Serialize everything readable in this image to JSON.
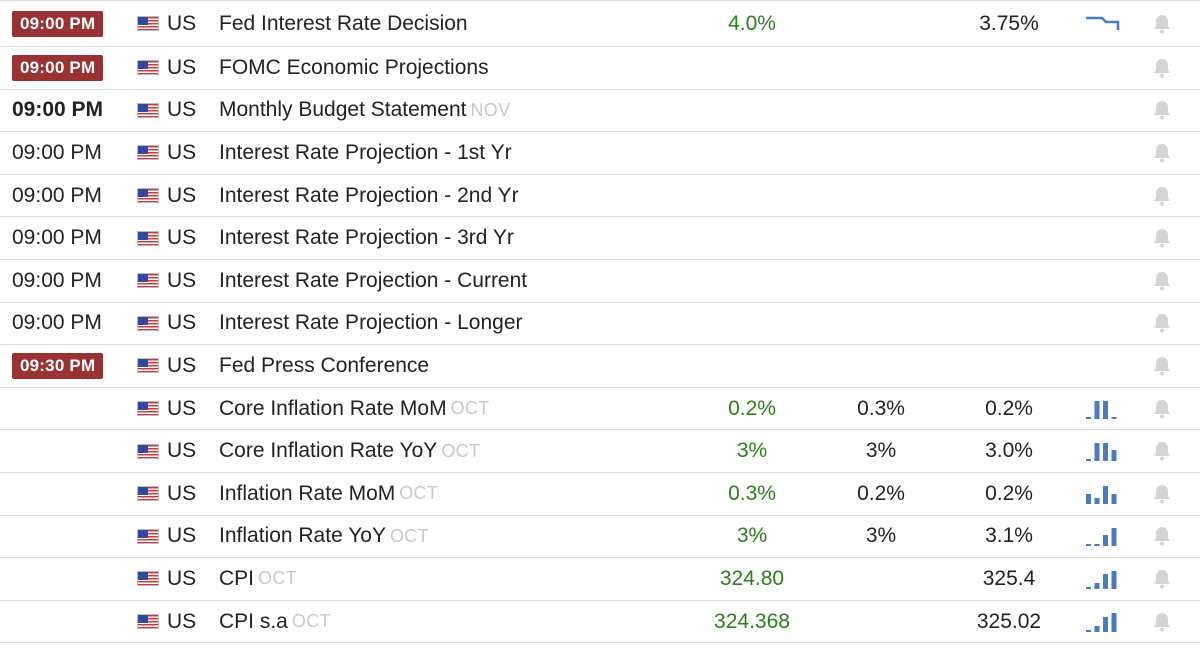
{
  "colors": {
    "badge_bg": "#993333",
    "actual_green": "#2e7d1f",
    "chart_blue": "#4a7bc0",
    "muted": "#c9c9c9"
  },
  "rows": [
    {
      "time": "09:00 PM",
      "time_style": "badge",
      "country": "US",
      "event": "Fed Interest Rate Decision",
      "ref": "",
      "actual": "4.0%",
      "consensus": "",
      "forecast": "3.75%",
      "chart": "step-line"
    },
    {
      "time": "09:00 PM",
      "time_style": "badge",
      "country": "US",
      "event": "FOMC Economic Projections",
      "ref": "",
      "actual": "",
      "consensus": "",
      "forecast": "",
      "chart": ""
    },
    {
      "time": "09:00 PM",
      "time_style": "bold",
      "country": "US",
      "event": "Monthly Budget Statement",
      "ref": "NOV",
      "actual": "",
      "consensus": "",
      "forecast": "",
      "chart": ""
    },
    {
      "time": "09:00 PM",
      "time_style": "plain",
      "country": "US",
      "event": "Interest Rate Projection - 1st Yr",
      "ref": "",
      "actual": "",
      "consensus": "",
      "forecast": "",
      "chart": ""
    },
    {
      "time": "09:00 PM",
      "time_style": "plain",
      "country": "US",
      "event": "Interest Rate Projection - 2nd Yr",
      "ref": "",
      "actual": "",
      "consensus": "",
      "forecast": "",
      "chart": ""
    },
    {
      "time": "09:00 PM",
      "time_style": "plain",
      "country": "US",
      "event": "Interest Rate Projection - 3rd Yr",
      "ref": "",
      "actual": "",
      "consensus": "",
      "forecast": "",
      "chart": ""
    },
    {
      "time": "09:00 PM",
      "time_style": "plain",
      "country": "US",
      "event": "Interest Rate Projection - Current",
      "ref": "",
      "actual": "",
      "consensus": "",
      "forecast": "",
      "chart": ""
    },
    {
      "time": "09:00 PM",
      "time_style": "plain",
      "country": "US",
      "event": "Interest Rate Projection - Longer",
      "ref": "",
      "actual": "",
      "consensus": "",
      "forecast": "",
      "chart": ""
    },
    {
      "time": "09:30 PM",
      "time_style": "badge",
      "country": "US",
      "event": "Fed Press Conference",
      "ref": "",
      "actual": "",
      "consensus": "",
      "forecast": "",
      "chart": ""
    },
    {
      "time": "",
      "time_style": "plain",
      "country": "US",
      "event": "Core Inflation Rate MoM",
      "ref": "OCT",
      "actual": "0.2%",
      "consensus": "0.3%",
      "forecast": "0.2%",
      "chart": "bars",
      "bars": [
        0.1,
        0.9,
        0.9,
        0.1
      ]
    },
    {
      "time": "",
      "time_style": "plain",
      "country": "US",
      "event": "Core Inflation Rate YoY",
      "ref": "OCT",
      "actual": "3%",
      "consensus": "3%",
      "forecast": "3.0%",
      "chart": "bars",
      "bars": [
        0.1,
        0.9,
        0.9,
        0.55
      ]
    },
    {
      "time": "",
      "time_style": "plain",
      "country": "US",
      "event": "Inflation Rate MoM",
      "ref": "OCT",
      "actual": "0.3%",
      "consensus": "0.2%",
      "forecast": "0.2%",
      "chart": "bars",
      "bars": [
        0.5,
        0.3,
        0.9,
        0.5
      ]
    },
    {
      "time": "",
      "time_style": "plain",
      "country": "US",
      "event": "Inflation Rate YoY",
      "ref": "OCT",
      "actual": "3%",
      "consensus": "3%",
      "forecast": "3.1%",
      "chart": "bars",
      "bars": [
        0.1,
        0.1,
        0.55,
        0.9
      ]
    },
    {
      "time": "",
      "time_style": "plain",
      "country": "US",
      "event": "CPI",
      "ref": "OCT",
      "actual": "324.80",
      "consensus": "",
      "forecast": "325.4",
      "chart": "bars",
      "bars": [
        0.1,
        0.3,
        0.75,
        0.9
      ]
    },
    {
      "time": "",
      "time_style": "plain",
      "country": "US",
      "event": "CPI s.a",
      "ref": "OCT",
      "actual": "324.368",
      "consensus": "",
      "forecast": "325.02",
      "chart": "bars",
      "bars": [
        0.1,
        0.3,
        0.75,
        0.95
      ]
    }
  ]
}
